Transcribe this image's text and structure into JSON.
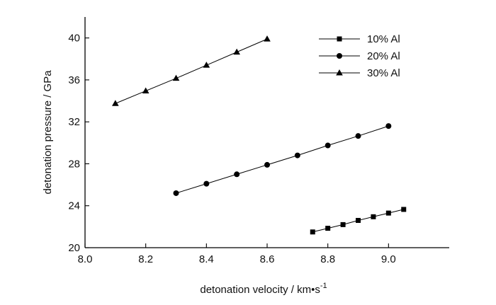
{
  "chart_data": {
    "type": "line",
    "title": "",
    "xlabel": "detonation  velocity  / km•s",
    "xlabel_superscript": "-1",
    "ylabel": "detonation pressure / GPa",
    "xlim": [
      8.0,
      9.2
    ],
    "ylim": [
      20,
      42
    ],
    "x_ticks": [
      8.0,
      8.2,
      8.4,
      8.6,
      8.8,
      9.0
    ],
    "x_tick_labels": [
      "8.0",
      "8.2",
      "8.4",
      "8.6",
      "8.8",
      "9.0"
    ],
    "y_ticks": [
      20,
      24,
      28,
      32,
      36,
      40
    ],
    "y_tick_labels": [
      "20",
      "24",
      "28",
      "32",
      "36",
      "40"
    ],
    "grid": false,
    "legend_position": "top-right",
    "series": [
      {
        "name": "10% Al",
        "marker": "square",
        "color": "#000000",
        "x": [
          8.75,
          8.8,
          8.85,
          8.9,
          8.95,
          9.0,
          9.05
        ],
        "y": [
          21.5,
          21.85,
          22.2,
          22.6,
          22.95,
          23.3,
          23.65
        ]
      },
      {
        "name": "20% Al",
        "marker": "circle",
        "color": "#000000",
        "x": [
          8.3,
          8.4,
          8.5,
          8.6,
          8.7,
          8.8,
          8.9,
          9.0
        ],
        "y": [
          25.2,
          26.1,
          27.0,
          27.9,
          28.8,
          29.75,
          30.65,
          31.6
        ]
      },
      {
        "name": "30% Al",
        "marker": "triangle",
        "color": "#000000",
        "x": [
          8.1,
          8.2,
          8.3,
          8.4,
          8.5,
          8.6
        ],
        "y": [
          33.75,
          34.95,
          36.15,
          37.4,
          38.65,
          39.9
        ]
      }
    ]
  }
}
